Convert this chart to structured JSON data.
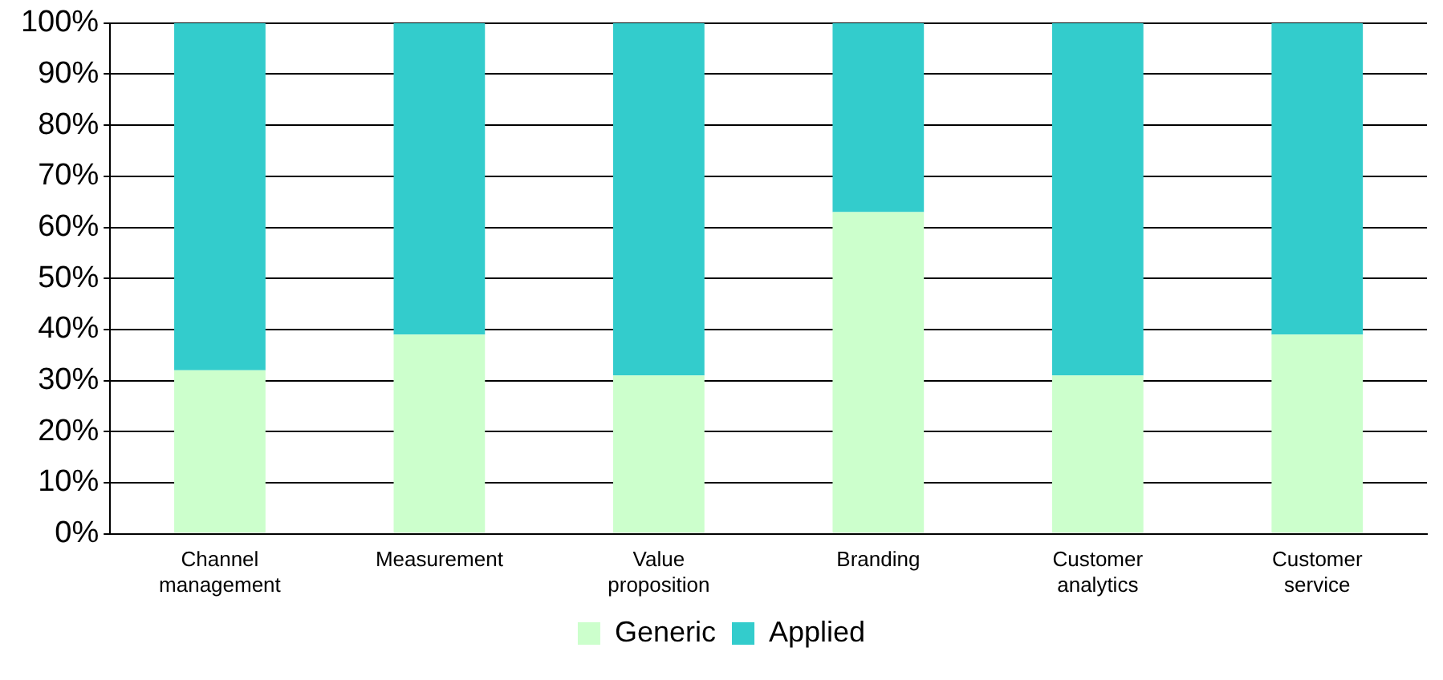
{
  "chart_data": {
    "type": "bar",
    "stacked": true,
    "categories": [
      "Channel management",
      "Measurement",
      "Value proposition",
      "Branding",
      "Customer analytics",
      "Customer service"
    ],
    "series": [
      {
        "name": "Generic",
        "color": "#ccffcc",
        "values": [
          32,
          39,
          31,
          63,
          31,
          39
        ]
      },
      {
        "name": "Applied",
        "color": "#33cccc",
        "values": [
          68,
          61,
          69,
          37,
          69,
          61
        ]
      }
    ],
    "ylim": [
      0,
      100
    ],
    "yticks": [
      {
        "value": 0,
        "label": "0%"
      },
      {
        "value": 10,
        "label": "10%"
      },
      {
        "value": 20,
        "label": "20%"
      },
      {
        "value": 30,
        "label": "30%"
      },
      {
        "value": 40,
        "label": "40%"
      },
      {
        "value": 50,
        "label": "50%"
      },
      {
        "value": 60,
        "label": "60%"
      },
      {
        "value": 70,
        "label": "70%"
      },
      {
        "value": 80,
        "label": "80%"
      },
      {
        "value": 90,
        "label": "90%"
      },
      {
        "value": 100,
        "label": "100%"
      }
    ],
    "grid": "y",
    "legend": "bottom"
  }
}
